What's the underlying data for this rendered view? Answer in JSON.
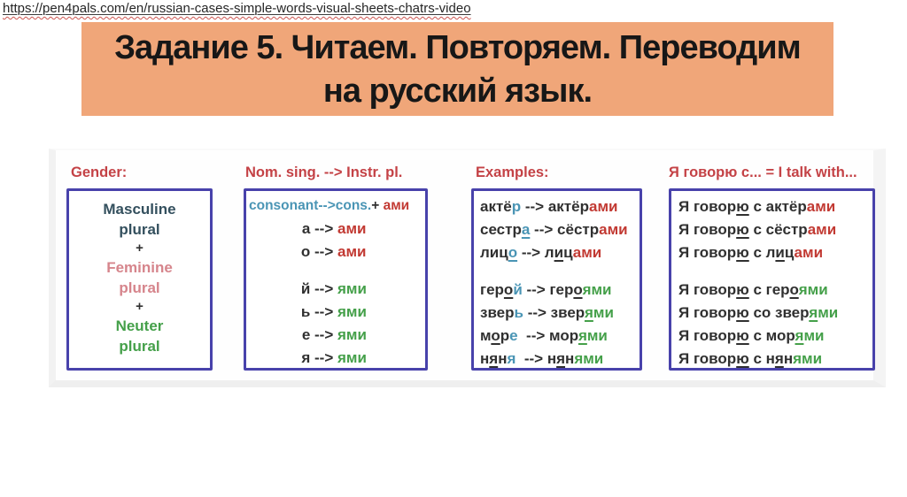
{
  "url_bar": {
    "url": "https://pen4pals.com/en/russian-cases-simple-words-visual-sheets-chatrs-video"
  },
  "banner": {
    "line1": "Задание 5. Читаем. Повторяем. Переводим",
    "line2": "на русский язык."
  },
  "colors": {
    "banner": "#f0a679",
    "redh": "#c44246",
    "red": "#c23a33",
    "green": "#45a04a",
    "teal": "#4a95b5",
    "dark": "#303030",
    "darkteal": "#34505e",
    "rose": "#d6858c",
    "border": "#4842ab",
    "squiggle": "#cc5550"
  },
  "columns": [
    {
      "header": "Gender:",
      "lines": [
        {
          "segs": [
            {
              "t": "Masculine",
              "c": "darkteal"
            }
          ]
        },
        {
          "segs": [
            {
              "t": "plural",
              "c": "darkteal"
            }
          ]
        },
        {
          "cls": "plusrow",
          "segs": [
            {
              "t": "+",
              "c": "dark"
            }
          ]
        },
        {
          "segs": [
            {
              "t": "Feminine",
              "c": "rose"
            }
          ]
        },
        {
          "segs": [
            {
              "t": "plural",
              "c": "rose"
            }
          ]
        },
        {
          "cls": "plusrow",
          "segs": [
            {
              "t": "+",
              "c": "dark"
            }
          ]
        },
        {
          "segs": [
            {
              "t": "Neuter",
              "c": "green"
            }
          ]
        },
        {
          "segs": [
            {
              "t": "plural",
              "c": "green"
            }
          ]
        }
      ]
    },
    {
      "header": "Nom. sing. --> Instr. pl.",
      "lines": [
        {
          "cls": "tight",
          "segs": [
            {
              "t": "consonant",
              "c": "teal"
            },
            {
              "t": "-->",
              "c": "teal"
            },
            {
              "t": "cons.",
              "c": "teal"
            },
            {
              "t": "+ ",
              "c": "dark"
            },
            {
              "t": "ами",
              "c": "red"
            }
          ]
        },
        {
          "l": [
            {
              "t": "а --> ",
              "c": "dark"
            }
          ],
          "r": [
            {
              "t": "ами",
              "c": "red"
            }
          ]
        },
        {
          "l": [
            {
              "t": "о --> ",
              "c": "dark"
            }
          ],
          "r": [
            {
              "t": "ами",
              "c": "red"
            }
          ]
        },
        {
          "spacer": true
        },
        {
          "l": [
            {
              "t": "й --> ",
              "c": "dark"
            }
          ],
          "r": [
            {
              "t": "ями",
              "c": "green"
            }
          ]
        },
        {
          "l": [
            {
              "t": "ь --> ",
              "c": "dark"
            }
          ],
          "r": [
            {
              "t": "ями",
              "c": "green"
            }
          ]
        },
        {
          "l": [
            {
              "t": "е --> ",
              "c": "dark"
            }
          ],
          "r": [
            {
              "t": "ями",
              "c": "green"
            }
          ]
        },
        {
          "l": [
            {
              "t": "я --> ",
              "c": "dark"
            }
          ],
          "r": [
            {
              "t": "ями",
              "c": "green"
            }
          ]
        }
      ]
    },
    {
      "header": "Examples:",
      "lines": [
        {
          "segs": [
            {
              "t": "актё",
              "c": "dark"
            },
            {
              "t": "р",
              "c": "teal"
            },
            {
              "t": " --> ",
              "c": "dark"
            },
            {
              "t": "актёр",
              "c": "dark"
            },
            {
              "t": "ами",
              "c": "red"
            }
          ]
        },
        {
          "segs": [
            {
              "t": "сестр",
              "c": "dark"
            },
            {
              "t": "а",
              "c": "teal",
              "u": true
            },
            {
              "t": " --> ",
              "c": "dark"
            },
            {
              "t": "сёстр",
              "c": "dark"
            },
            {
              "t": "ами",
              "c": "red"
            }
          ]
        },
        {
          "segs": [
            {
              "t": "лиц",
              "c": "dark"
            },
            {
              "t": "о",
              "c": "teal",
              "u": true
            },
            {
              "t": " --> ",
              "c": "dark"
            },
            {
              "t": "л",
              "c": "dark"
            },
            {
              "t": "и",
              "c": "dark",
              "u": true
            },
            {
              "t": "ц",
              "c": "dark"
            },
            {
              "t": "ами",
              "c": "red"
            }
          ]
        },
        {
          "spacer": true
        },
        {
          "segs": [
            {
              "t": "гер",
              "c": "dark"
            },
            {
              "t": "о",
              "c": "dark",
              "u": true
            },
            {
              "t": "й",
              "c": "teal"
            },
            {
              "t": " --> ",
              "c": "dark"
            },
            {
              "t": "гер",
              "c": "dark"
            },
            {
              "t": "о",
              "c": "dark",
              "u": true
            },
            {
              "t": "ями",
              "c": "green"
            }
          ]
        },
        {
          "segs": [
            {
              "t": "звер",
              "c": "dark"
            },
            {
              "t": "ь",
              "c": "teal"
            },
            {
              "t": " --> ",
              "c": "dark"
            },
            {
              "t": "звер",
              "c": "dark"
            },
            {
              "t": "я",
              "c": "green",
              "u": true
            },
            {
              "t": "ми",
              "c": "green"
            }
          ]
        },
        {
          "segs": [
            {
              "t": "м",
              "c": "dark"
            },
            {
              "t": "о",
              "c": "dark",
              "u": true
            },
            {
              "t": "р",
              "c": "dark"
            },
            {
              "t": "е",
              "c": "teal"
            },
            {
              "t": "  --> ",
              "c": "dark"
            },
            {
              "t": "мор",
              "c": "dark"
            },
            {
              "t": "я",
              "c": "green",
              "u": true
            },
            {
              "t": "ми",
              "c": "green"
            }
          ]
        },
        {
          "segs": [
            {
              "t": "н",
              "c": "dark"
            },
            {
              "t": "я",
              "c": "dark",
              "u": true
            },
            {
              "t": "н",
              "c": "dark"
            },
            {
              "t": "я",
              "c": "teal"
            },
            {
              "t": "  --> ",
              "c": "dark"
            },
            {
              "t": "н",
              "c": "dark"
            },
            {
              "t": "я",
              "c": "dark",
              "u": true
            },
            {
              "t": "н",
              "c": "dark"
            },
            {
              "t": "ями",
              "c": "green"
            }
          ]
        }
      ]
    },
    {
      "header": "Я говорю с... = I talk with...",
      "lines": [
        {
          "segs": [
            {
              "t": "Я говор",
              "c": "dark"
            },
            {
              "t": "ю",
              "c": "dark",
              "u": true
            },
            {
              "t": " с актёр",
              "c": "dark"
            },
            {
              "t": "ами",
              "c": "red"
            }
          ]
        },
        {
          "segs": [
            {
              "t": "Я говор",
              "c": "dark"
            },
            {
              "t": "ю",
              "c": "dark",
              "u": true
            },
            {
              "t": " с сёстр",
              "c": "dark"
            },
            {
              "t": "ами",
              "c": "red"
            }
          ]
        },
        {
          "segs": [
            {
              "t": "Я говор",
              "c": "dark"
            },
            {
              "t": "ю",
              "c": "dark",
              "u": true
            },
            {
              "t": " с л",
              "c": "dark"
            },
            {
              "t": "и",
              "c": "dark",
              "u": true
            },
            {
              "t": "ц",
              "c": "dark"
            },
            {
              "t": "ами",
              "c": "red"
            }
          ]
        },
        {
          "spacer": true
        },
        {
          "segs": [
            {
              "t": "Я говор",
              "c": "dark"
            },
            {
              "t": "ю",
              "c": "dark",
              "u": true
            },
            {
              "t": " с гер",
              "c": "dark"
            },
            {
              "t": "о",
              "c": "dark",
              "u": true
            },
            {
              "t": "ями",
              "c": "green"
            }
          ]
        },
        {
          "segs": [
            {
              "t": "Я говор",
              "c": "dark"
            },
            {
              "t": "ю",
              "c": "dark",
              "u": true
            },
            {
              "t": " со звер",
              "c": "dark"
            },
            {
              "t": "я",
              "c": "green",
              "u": true
            },
            {
              "t": "ми",
              "c": "green"
            }
          ]
        },
        {
          "segs": [
            {
              "t": "Я говор",
              "c": "dark"
            },
            {
              "t": "ю",
              "c": "dark",
              "u": true
            },
            {
              "t": " с мор",
              "c": "dark"
            },
            {
              "t": "я",
              "c": "green",
              "u": true
            },
            {
              "t": "ми",
              "c": "green"
            }
          ]
        },
        {
          "segs": [
            {
              "t": "Я говор",
              "c": "dark"
            },
            {
              "t": "ю",
              "c": "dark",
              "u": true
            },
            {
              "t": " с н",
              "c": "dark"
            },
            {
              "t": "я",
              "c": "dark",
              "u": true
            },
            {
              "t": "н",
              "c": "dark"
            },
            {
              "t": "ями",
              "c": "green"
            }
          ]
        }
      ]
    }
  ]
}
